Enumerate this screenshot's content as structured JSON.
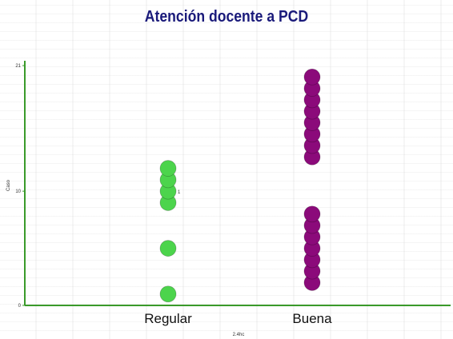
{
  "chart_data": {
    "type": "scatter",
    "title": "Atención docente a PCD",
    "xlabel": "2.4hc",
    "ylabel": "Caso",
    "categories": [
      "Regular",
      "Buena"
    ],
    "ylim": [
      0,
      21
    ],
    "yticks": [
      0,
      10,
      21
    ],
    "series": [
      {
        "category": "Regular",
        "color": "#4cd44c",
        "y": [
          1,
          5,
          9,
          10,
          11,
          12
        ]
      },
      {
        "category": "Buena",
        "color": "#8b0a7a",
        "y": [
          2,
          3,
          4,
          5,
          6,
          7,
          8,
          13,
          14,
          15,
          16,
          17,
          18,
          19,
          20
        ]
      }
    ],
    "annotations": [
      {
        "text": "1",
        "category": "Regular",
        "y": 10
      }
    ],
    "axis_color": "#3a9a2a",
    "grid": false
  }
}
